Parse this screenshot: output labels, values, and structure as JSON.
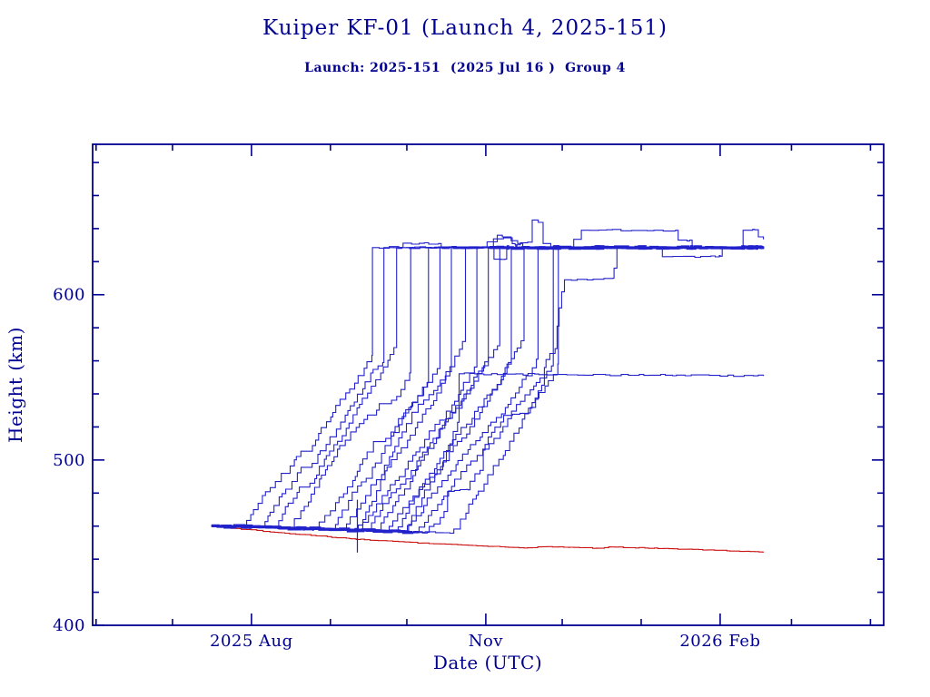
{
  "page": {
    "title": "Kuiper KF-01 (Launch 4, 2025-151)",
    "subtitle": "Launch: 2025-151  (2025 Jul 16 )  Group 4"
  },
  "chart_data": {
    "type": "line",
    "title": "Kuiper KF-01 (Launch 4, 2025-151)",
    "subtitle": "Launch: 2025-151  (2025 Jul 16 )  Group 4",
    "xlabel": "Date (UTC)",
    "ylabel": "Height (km)",
    "x_unit": "days since 2025 Jun 1",
    "xlim": [
      -1.35,
      309.2
    ],
    "ylim": [
      400,
      691
    ],
    "grid": false,
    "legend": "none",
    "x_major_ticks": [
      {
        "t": 61,
        "label": "2025 Aug"
      },
      {
        "t": 153,
        "label": "Nov"
      },
      {
        "t": 245,
        "label": "2026 Feb"
      }
    ],
    "x_minor_ticks": [
      0,
      30,
      92,
      122,
      183,
      214,
      273,
      304
    ],
    "y_major_ticks": [
      {
        "v": 400,
        "label": "400"
      },
      {
        "v": 500,
        "label": "500"
      },
      {
        "v": 600,
        "label": "600"
      }
    ],
    "y_minor_ticks": [
      420,
      440,
      460,
      480,
      520,
      540,
      560,
      580,
      620,
      640,
      660,
      680
    ],
    "colors": {
      "axis": "#000090",
      "text": "#000090",
      "satellite": "#2222cc",
      "decay": "#cc1111"
    },
    "launch_day_t": 45.3,
    "data_end_t": 262,
    "deploy_height_km": 460.3,
    "band_decline_per_day": 0.048,
    "target_height_km": 628.5,
    "seed": 11,
    "emphasis_dashes": [
      {
        "along": "band",
        "t0": 47,
        "t1": 121,
        "count": 9,
        "width": 4.6
      },
      {
        "along": "plateau",
        "t0": 156,
        "t1": 260,
        "count": 13,
        "width": 5.0
      }
    ],
    "series": [
      {
        "name": "sat-01",
        "color": "satellite",
        "w": 1.1,
        "long_pauses": true,
        "start": [
          45.3,
          460.3
        ],
        "segs": [
          [
            "f",
            58.5,
            459.7
          ],
          [
            "c",
            108.5,
            628.5
          ],
          [
            "f",
            119.5,
            628.7
          ],
          [
            "f",
            120.5,
            631.2
          ],
          [
            "f",
            134.5,
            631.0
          ],
          [
            "f",
            135.5,
            628.7
          ],
          [
            "f",
            262,
            628.4
          ]
        ]
      },
      {
        "name": "sat-02",
        "color": "satellite",
        "w": 1.1,
        "long_pauses": true,
        "start": [
          45.3,
          460.3
        ],
        "segs": [
          [
            "f",
            65.7,
            459.3
          ],
          [
            "c",
            113,
            628.5
          ],
          [
            "f",
            154.5,
            628.6
          ],
          [
            "f",
            156,
            633.8
          ],
          [
            "f",
            160,
            634.4
          ],
          [
            "f",
            164.5,
            630.2
          ],
          [
            "f",
            169.5,
            631.8
          ],
          [
            "f",
            171.2,
            645.2
          ],
          [
            "f",
            173.6,
            643.8
          ],
          [
            "f",
            175.5,
            631
          ],
          [
            "f",
            178.5,
            628.6
          ],
          [
            "f",
            262,
            628.6
          ]
        ]
      },
      {
        "name": "sat-03",
        "color": "satellite",
        "w": 1.1,
        "long_pauses": true,
        "start": [
          45.3,
          460.3
        ],
        "segs": [
          [
            "f",
            71,
            459.1
          ],
          [
            "c",
            118,
            628.5
          ],
          [
            "f",
            152,
            628.5
          ],
          [
            "f",
            153.5,
            632
          ],
          [
            "f",
            157.5,
            636
          ],
          [
            "f",
            159.5,
            635
          ],
          [
            "f",
            165.5,
            631
          ],
          [
            "f",
            167.5,
            628.5
          ],
          [
            "f",
            262,
            628.5
          ]
        ]
      },
      {
        "name": "sat-04",
        "color": "satellite",
        "w": 1.1,
        "long_pauses": true,
        "start": [
          45.3,
          460.3
        ],
        "segs": [
          [
            "f",
            77,
            458.8
          ],
          [
            "c",
            123.5,
            628.5
          ],
          [
            "f",
            262,
            628.5
          ]
        ]
      },
      {
        "name": "sat-05",
        "color": "satellite",
        "w": 1.1,
        "long_pauses": true,
        "start": [
          45.3,
          460.3
        ],
        "segs": [
          [
            "f",
            87,
            458.3
          ],
          [
            "c",
            130.5,
            628.5
          ],
          [
            "f",
            186.5,
            628.6
          ],
          [
            "f",
            187.5,
            633.5
          ],
          [
            "f",
            189.5,
            633.5
          ],
          [
            "f",
            190.5,
            639
          ],
          [
            "f",
            227.5,
            639
          ],
          [
            "f",
            228.5,
            633
          ],
          [
            "f",
            233,
            633
          ],
          [
            "f",
            234,
            628.6
          ],
          [
            "f",
            262,
            628.6
          ]
        ]
      },
      {
        "name": "sat-06",
        "color": "satellite",
        "w": 1.1,
        "start": [
          45.3,
          460.3
        ],
        "segs": [
          [
            "f",
            93.5,
            458.0
          ],
          [
            "c",
            135,
            628.5
          ],
          [
            "f",
            262,
            628.5
          ]
        ]
      },
      {
        "name": "sat-07",
        "color": "satellite",
        "w": 1.1,
        "start": [
          45.3,
          460.3
        ],
        "segs": [
          [
            "f",
            97.8,
            457.8
          ],
          [
            "c",
            139.5,
            628.5
          ],
          [
            "f",
            155.5,
            628.5
          ],
          [
            "f",
            156.2,
            621.5
          ],
          [
            "f",
            160.5,
            621.5
          ],
          [
            "f",
            161.2,
            628.5
          ],
          [
            "f",
            262,
            628.5
          ]
        ]
      },
      {
        "name": "sat-08",
        "color": "satellite",
        "w": 1.1,
        "start": [
          45.3,
          460.3
        ],
        "segs": [
          [
            "f",
            102.4,
            457.6
          ],
          [
            "c",
            145,
            628.5
          ],
          [
            "f",
            262,
            628.5
          ]
        ]
      },
      {
        "name": "sat-09",
        "color": "satellite",
        "w": 1.1,
        "start": [
          45.3,
          460.3
        ],
        "segs": [
          [
            "f",
            103.8,
            457.5
          ],
          [
            "c",
            149.5,
            628.5
          ],
          [
            "f",
            221.5,
            628.5
          ],
          [
            "f",
            222.3,
            623
          ],
          [
            "f",
            245,
            623.3
          ],
          [
            "f",
            245.8,
            628.5
          ],
          [
            "f",
            262,
            628.5
          ]
        ]
      },
      {
        "name": "sat-10",
        "color": "satellite",
        "w": 1.1,
        "start": [
          45.3,
          460.3
        ],
        "segs": [
          [
            "f",
            107.4,
            457.3
          ],
          [
            "c",
            154,
            628.5
          ],
          [
            "f",
            262,
            628.5
          ]
        ]
      },
      {
        "name": "sat-11",
        "color": "satellite",
        "w": 1.1,
        "start": [
          45.3,
          460.3
        ],
        "segs": [
          [
            "f",
            111,
            457.2
          ],
          [
            "c",
            158.5,
            628.5
          ],
          [
            "f",
            262,
            628.5
          ]
        ]
      },
      {
        "name": "sat-12",
        "color": "satellite",
        "w": 1.1,
        "start": [
          45.3,
          460.3
        ],
        "segs": [
          [
            "f",
            114.5,
            457.0
          ],
          [
            "c",
            163,
            628.5
          ],
          [
            "f",
            253,
            628.5
          ],
          [
            "f",
            254,
            639
          ],
          [
            "f",
            258.5,
            639.3
          ],
          [
            "f",
            260,
            635
          ],
          [
            "f",
            262,
            633.5
          ]
        ]
      },
      {
        "name": "sat-13",
        "color": "satellite",
        "w": 1.1,
        "start": [
          45.3,
          460.3
        ],
        "segs": [
          [
            "f",
            118.1,
            456.8
          ],
          [
            "c",
            168,
            628.5
          ],
          [
            "f",
            262,
            628.5
          ]
        ]
      },
      {
        "name": "sat-14",
        "color": "satellite",
        "w": 1.1,
        "start": [
          45.3,
          460.3
        ],
        "segs": [
          [
            "f",
            121.6,
            456.6
          ],
          [
            "c",
            173.5,
            628.5
          ],
          [
            "f",
            262,
            628.5
          ]
        ]
      },
      {
        "name": "sat-15",
        "color": "satellite",
        "w": 1.1,
        "start": [
          45.3,
          460.3
        ],
        "segs": [
          [
            "f",
            126.3,
            456.4
          ],
          [
            "c",
            179.5,
            628.5
          ],
          [
            "f",
            262,
            628.5
          ]
        ]
      },
      {
        "name": "sat-16",
        "color": "satellite",
        "w": 1.1,
        "start": [
          45.3,
          460.3
        ],
        "segs": [
          [
            "f",
            130,
            456.2
          ],
          [
            "c",
            138,
            481
          ],
          [
            "f",
            146,
            482
          ],
          [
            "c",
            152,
            506
          ],
          [
            "c",
            160,
            527
          ],
          [
            "f",
            170,
            528.5
          ],
          [
            "c",
            176,
            556
          ],
          [
            "c",
            181,
            581
          ],
          [
            "c",
            184,
            609
          ],
          [
            "f",
            203,
            610
          ],
          [
            "c",
            204.5,
            628.6
          ],
          [
            "f",
            262,
            628.6
          ]
        ]
      },
      {
        "name": "sat-17",
        "color": "satellite",
        "w": 1.1,
        "start": [
          45.3,
          460.3
        ],
        "segs": [
          [
            "f",
            122,
            456.6
          ],
          [
            "c",
            142.5,
            552.2
          ],
          [
            "f",
            200,
            551.5
          ],
          [
            "f",
            262,
            550.8
          ]
        ]
      },
      {
        "name": "sat-18",
        "color": "satellite",
        "w": 1.1,
        "start": [
          45.3,
          460.3
        ],
        "segs": [
          [
            "f",
            140,
            455.8
          ],
          [
            "c",
            181.5,
            628.5
          ],
          [
            "f",
            262,
            628.5
          ]
        ]
      },
      {
        "name": "decay-object",
        "color": "decay",
        "w": 1.1,
        "start": [
          45.3,
          459.8
        ],
        "segs": [
          [
            "n",
            70,
            456.3
          ],
          [
            "n",
            100,
            452.3
          ],
          [
            "n",
            133,
            449.3
          ],
          [
            "n",
            168,
            446.8
          ],
          [
            "n",
            177,
            447.6
          ],
          [
            "n",
            186,
            447.2
          ],
          [
            "n",
            197,
            446.6
          ],
          [
            "n",
            202,
            447.4
          ],
          [
            "n",
            240,
            445.6
          ],
          [
            "n",
            262,
            444.2
          ]
        ]
      },
      {
        "name": "deploy-band-bold",
        "color": "satellite",
        "w": 3.3,
        "start": [
          45.3,
          460.2
        ],
        "segs": [
          [
            "f",
            124,
            456.5
          ]
        ]
      },
      {
        "name": "plateau-bold",
        "color": "satellite",
        "w": 3.3,
        "start": [
          154.5,
          628.6
        ],
        "segs": [
          [
            "f",
            262,
            628.6
          ]
        ]
      },
      {
        "name": "glitch-spike",
        "color": "satellite",
        "w": 1.2,
        "start": [
          102.6,
          476
        ],
        "segs": [
          [
            "l",
            102.6,
            444
          ]
        ]
      }
    ]
  }
}
